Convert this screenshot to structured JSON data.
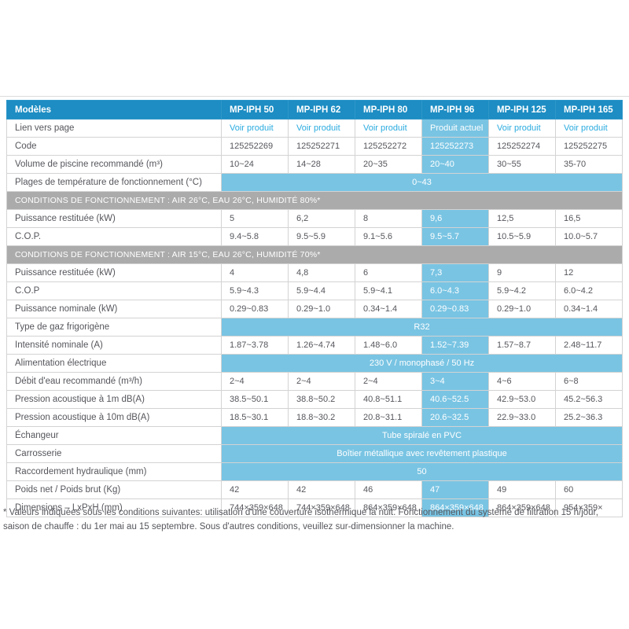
{
  "table": {
    "header_label": "Modèles",
    "columns": [
      "MP-IPH 50",
      "MP-IPH 62",
      "MP-IPH 80",
      "MP-IPH 96",
      "MP-IPH 125",
      "MP-IPH 165"
    ],
    "highlight_column": "MP-IPH 96",
    "highlight_column_index": 3,
    "current_product_label": "Produit actuel",
    "link_label": "Voir produit",
    "rows": [
      {
        "type": "links",
        "label": "Lien vers page",
        "values": [
          "Voir produit",
          "Voir produit",
          "Voir produit",
          "Produit actuel",
          "Voir produit",
          "Voir produit"
        ]
      },
      {
        "type": "data",
        "label": "Code",
        "values": [
          "125252269",
          "125252271",
          "125252272",
          "125252273",
          "125252274",
          "125252275"
        ]
      },
      {
        "type": "data",
        "label": "Volume de piscine recommandé (m³)",
        "values": [
          "10~24",
          "14~28",
          "20~35",
          "20~40",
          "30~55",
          "35-70"
        ]
      },
      {
        "type": "merged",
        "label": "Plages de température de fonctionnement (°C)",
        "value": "0~43"
      },
      {
        "type": "section",
        "title": "CONDITIONS DE FONCTIONNEMENT : AIR 26°C, EAU 26°C, HUMIDITÉ 80%*"
      },
      {
        "type": "data",
        "label": "Puissance restituée (kW)",
        "values": [
          "5",
          "6,2",
          "8",
          "9,6",
          "12,5",
          "16,5"
        ]
      },
      {
        "type": "data",
        "label": "C.O.P.",
        "values": [
          "9.4~5.8",
          "9.5~5.9",
          "9.1~5.6",
          "9.5~5.7",
          "10.5~5.9",
          "10.0~5.7"
        ]
      },
      {
        "type": "section",
        "title": "CONDITIONS DE FONCTIONNEMENT : AIR 15°C, EAU 26°C, HUMIDITÉ 70%*"
      },
      {
        "type": "data",
        "label": "Puissance restituée (kW)",
        "values": [
          "4",
          "4,8",
          "6",
          "7,3",
          "9",
          "12"
        ]
      },
      {
        "type": "data",
        "label": "C.O.P",
        "values": [
          "5.9~4.3",
          "5.9~4.4",
          "5.9~4.1",
          "6.0~4.3",
          "5.9~4.2",
          "6.0~4.2"
        ]
      },
      {
        "type": "data",
        "label": "Puissance nominale (kW)",
        "values": [
          "0.29~0.83",
          "0.29~1.0",
          "0.34~1.4",
          "0.29~0.83",
          "0.29~1.0",
          "0.34~1.4"
        ]
      },
      {
        "type": "merged",
        "label": "Type de gaz frigorigène",
        "value": "R32"
      },
      {
        "type": "data",
        "label": "Intensité nominale (A)",
        "values": [
          "1.87~3.78",
          "1.26~4.74",
          "1.48~6.0",
          "1.52~7.39",
          "1.57~8.7",
          "2.48~11.7"
        ]
      },
      {
        "type": "merged",
        "label": "Alimentation électrique",
        "value": "230 V / monophasé / 50 Hz"
      },
      {
        "type": "data",
        "label": "Débit d'eau recommandé (m³/h)",
        "values": [
          "2~4",
          "2~4",
          "2~4",
          "3~4",
          "4~6",
          "6~8"
        ]
      },
      {
        "type": "data",
        "label": "Pression acoustique à 1m dB(A)",
        "values": [
          "38.5~50.1",
          "38.8~50.2",
          "40.8~51.1",
          "40.6~52.5",
          "42.9~53.0",
          "45.2~56.3"
        ]
      },
      {
        "type": "data",
        "label": "Pression acoustique à 10m dB(A)",
        "values": [
          "18.5~30.1",
          "18.8~30.2",
          "20.8~31.1",
          "20.6~32.5",
          "22.9~33.0",
          "25.2~36.3"
        ]
      },
      {
        "type": "merged",
        "label": "Échangeur",
        "value": "Tube spiralé en PVC"
      },
      {
        "type": "merged",
        "label": "Carrosserie",
        "value": "Boîtier métallique avec revêtement plastique"
      },
      {
        "type": "merged",
        "label": "Raccordement hydraulique (mm)",
        "value": "50"
      },
      {
        "type": "data",
        "label": "Poids net / Poids brut (Kg)",
        "values": [
          "42",
          "42",
          "46",
          "47",
          "49",
          "60"
        ]
      },
      {
        "type": "data",
        "label": "Dimensions – LxPxH (mm)",
        "values": [
          "744×359×648",
          "744×359×648",
          "864×359×648",
          "864×359×648",
          "864×359×648",
          "954×359×"
        ]
      }
    ]
  },
  "footnote": "* Valeurs indiquées sous les conditions suivantes: utilisation d'une couverture isothermique la nuit. Fonctionnement du système de filtration 15 h/jour, saison de chauffe : du 1er mai au 15 septembre. Sous d'autres conditions, veuillez sur-dimensionner la machine.",
  "colors": {
    "header_blue": "#1d8dc3",
    "highlight_cyan": "#79c4e3",
    "section_gray": "#ababab",
    "link_blue": "#2aabdf",
    "border_gray": "#d3d3d3",
    "text_gray": "#55565c"
  }
}
